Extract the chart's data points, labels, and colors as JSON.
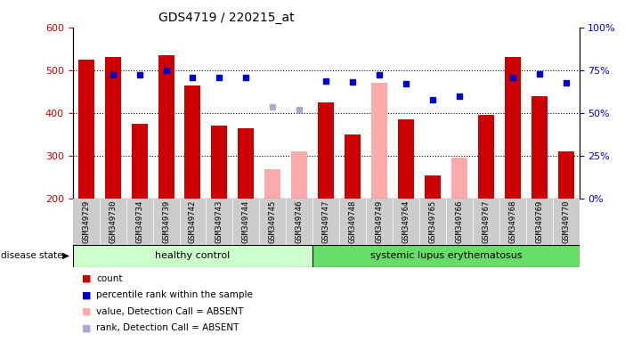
{
  "title": "GDS4719 / 220215_at",
  "samples": [
    "GSM349729",
    "GSM349730",
    "GSM349734",
    "GSM349739",
    "GSM349742",
    "GSM349743",
    "GSM349744",
    "GSM349745",
    "GSM349746",
    "GSM349747",
    "GSM349748",
    "GSM349749",
    "GSM349764",
    "GSM349765",
    "GSM349766",
    "GSM349767",
    "GSM349768",
    "GSM349769",
    "GSM349770"
  ],
  "count_values": [
    525,
    530,
    375,
    535,
    465,
    370,
    365,
    null,
    null,
    425,
    350,
    null,
    385,
    253,
    null,
    395,
    530,
    440,
    310
  ],
  "count_absent_values": [
    null,
    null,
    null,
    null,
    null,
    null,
    null,
    268,
    310,
    null,
    null,
    470,
    null,
    null,
    295,
    null,
    null,
    null,
    null
  ],
  "percentile_values": [
    null,
    490,
    490,
    500,
    483,
    483,
    483,
    null,
    null,
    475,
    473,
    490,
    468,
    430,
    440,
    null,
    483,
    492,
    470
  ],
  "percentile_absent_values": [
    null,
    null,
    null,
    null,
    null,
    null,
    null,
    413,
    408,
    null,
    null,
    null,
    null,
    null,
    null,
    null,
    null,
    null,
    null
  ],
  "healthy_control_indices": [
    0,
    1,
    2,
    3,
    4,
    5,
    6,
    7,
    8
  ],
  "sle_indices": [
    9,
    10,
    11,
    12,
    13,
    14,
    15,
    16,
    17,
    18
  ],
  "ylim_left": [
    200,
    600
  ],
  "ylim_right": [
    0,
    100
  ],
  "yticks_left": [
    200,
    300,
    400,
    500,
    600
  ],
  "yticks_right": [
    0,
    25,
    50,
    75,
    100
  ],
  "grid_values": [
    300,
    400,
    500
  ],
  "bar_color_red": "#cc0000",
  "bar_color_pink": "#ffaaaa",
  "dot_color_blue": "#0000cc",
  "dot_color_lightblue": "#aaaacc",
  "healthy_bg": "#ccffcc",
  "sle_bg": "#66dd66",
  "label_bg": "#cccccc",
  "legend_items": [
    "count",
    "percentile rank within the sample",
    "value, Detection Call = ABSENT",
    "rank, Detection Call = ABSENT"
  ]
}
